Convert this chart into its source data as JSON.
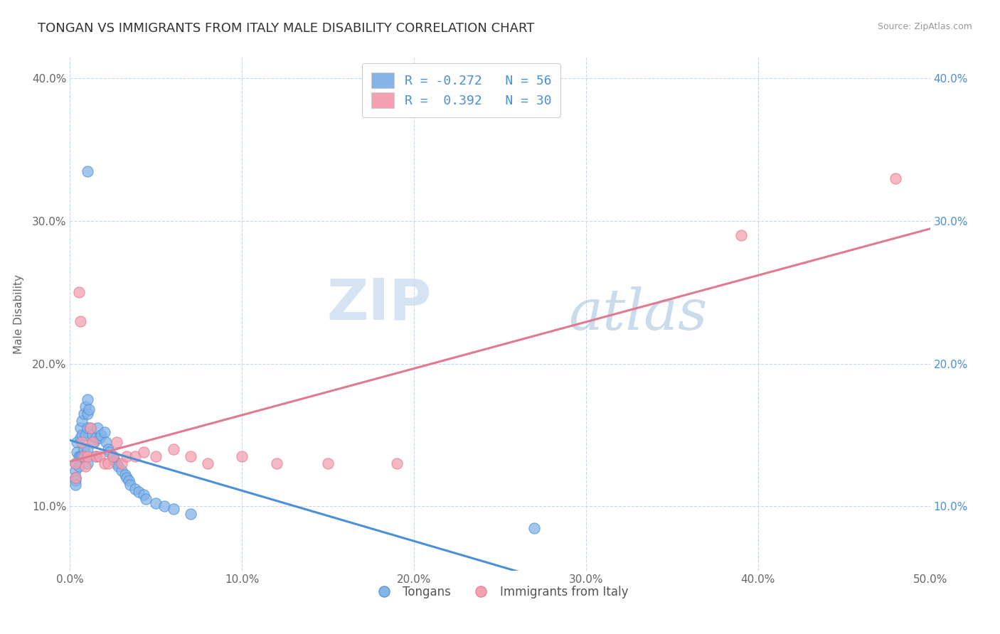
{
  "title": "TONGAN VS IMMIGRANTS FROM ITALY MALE DISABILITY CORRELATION CHART",
  "source": "Source: ZipAtlas.com",
  "ylabel": "Male Disability",
  "xlim": [
    0.0,
    0.5
  ],
  "ylim": [
    0.055,
    0.415
  ],
  "xticks": [
    0.0,
    0.1,
    0.2,
    0.3,
    0.4,
    0.5
  ],
  "yticks": [
    0.1,
    0.2,
    0.3,
    0.4
  ],
  "xticklabels": [
    "0.0%",
    "10.0%",
    "20.0%",
    "30.0%",
    "40.0%",
    "50.0%"
  ],
  "yticklabels_left": [
    "10.0%",
    "20.0%",
    "30.0%",
    "40.0%"
  ],
  "yticklabels_right": [
    "10.0%",
    "20.0%",
    "30.0%",
    "40.0%"
  ],
  "legend_labels": [
    "Tongans",
    "Immigrants from Italy"
  ],
  "legend_r_blue": "R = -0.272   N = 56",
  "legend_r_pink": "R =  0.392   N = 30",
  "blue_color": "#85b4e8",
  "pink_color": "#f4a0b0",
  "blue_line_color": "#4a90d9",
  "pink_line_color": "#e07a90",
  "watermark_zip": "ZIP",
  "watermark_atlas": "atlas",
  "background_color": "#ffffff",
  "grid_color": "#c8d8e8",
  "title_fontsize": 13,
  "axis_fontsize": 11,
  "tick_fontsize": 11,
  "tongans_x": [
    0.003,
    0.003,
    0.003,
    0.003,
    0.003,
    0.004,
    0.004,
    0.005,
    0.005,
    0.006,
    0.006,
    0.006,
    0.007,
    0.007,
    0.007,
    0.008,
    0.008,
    0.009,
    0.009,
    0.01,
    0.01,
    0.01,
    0.01,
    0.01,
    0.011,
    0.012,
    0.013,
    0.014,
    0.015,
    0.015,
    0.016,
    0.017,
    0.018,
    0.02,
    0.021,
    0.022,
    0.023,
    0.025,
    0.026,
    0.027,
    0.028,
    0.03,
    0.032,
    0.033,
    0.034,
    0.035,
    0.038,
    0.04,
    0.043,
    0.044,
    0.05,
    0.055,
    0.06,
    0.07,
    0.01,
    0.27
  ],
  "tongans_y": [
    0.13,
    0.125,
    0.12,
    0.118,
    0.115,
    0.145,
    0.138,
    0.135,
    0.128,
    0.155,
    0.148,
    0.135,
    0.16,
    0.15,
    0.135,
    0.165,
    0.14,
    0.17,
    0.15,
    0.175,
    0.165,
    0.155,
    0.14,
    0.13,
    0.168,
    0.155,
    0.15,
    0.145,
    0.148,
    0.135,
    0.155,
    0.148,
    0.15,
    0.152,
    0.145,
    0.14,
    0.138,
    0.135,
    0.132,
    0.13,
    0.128,
    0.125,
    0.122,
    0.12,
    0.118,
    0.115,
    0.112,
    0.11,
    0.108,
    0.105,
    0.102,
    0.1,
    0.098,
    0.095,
    0.335,
    0.085
  ],
  "italy_x": [
    0.003,
    0.003,
    0.005,
    0.006,
    0.007,
    0.008,
    0.009,
    0.01,
    0.012,
    0.013,
    0.015,
    0.017,
    0.02,
    0.022,
    0.025,
    0.027,
    0.03,
    0.033,
    0.038,
    0.043,
    0.05,
    0.06,
    0.07,
    0.08,
    0.1,
    0.12,
    0.15,
    0.19,
    0.39,
    0.48
  ],
  "italy_y": [
    0.13,
    0.12,
    0.25,
    0.23,
    0.145,
    0.135,
    0.128,
    0.135,
    0.155,
    0.145,
    0.135,
    0.135,
    0.13,
    0.13,
    0.135,
    0.145,
    0.13,
    0.135,
    0.135,
    0.138,
    0.135,
    0.14,
    0.135,
    0.13,
    0.135,
    0.13,
    0.13,
    0.13,
    0.29,
    0.33
  ]
}
